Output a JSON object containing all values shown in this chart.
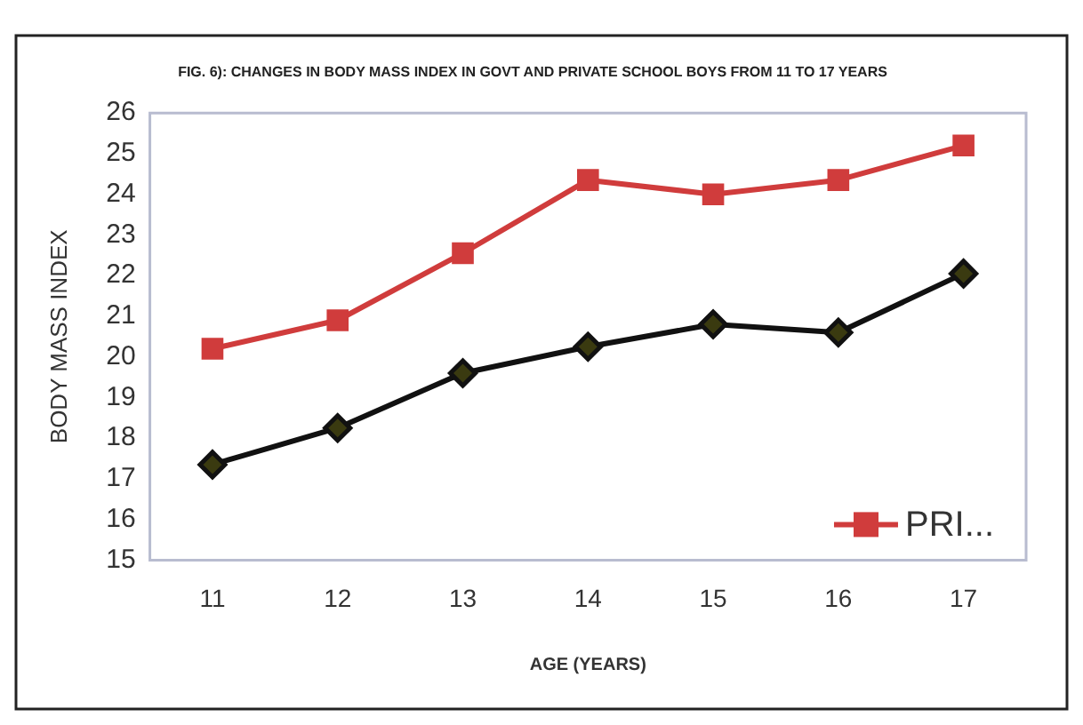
{
  "chart_data": {
    "type": "line",
    "title": "FIG. 6): CHANGES IN BODY MASS INDEX IN GOVT AND PRIVATE SCHOOL BOYS FROM 11 TO 17 YEARS",
    "xlabel": "AGE (YEARS)",
    "ylabel": "BODY MASS INDEX",
    "categories": [
      "11",
      "12",
      "13",
      "14",
      "15",
      "16",
      "17"
    ],
    "series": [
      {
        "name": "PRI...",
        "color": "#d03c3c",
        "marker": "square",
        "values": [
          20.2,
          20.9,
          22.55,
          24.35,
          24.0,
          24.35,
          25.2
        ]
      },
      {
        "color": "#111111",
        "marker": "diamond",
        "values": [
          17.35,
          18.25,
          19.6,
          20.25,
          20.8,
          20.6,
          22.05
        ]
      }
    ],
    "ylim": [
      15,
      26
    ],
    "yticks": [
      15,
      16,
      17,
      18,
      19,
      20,
      21,
      22,
      23,
      24,
      25,
      26
    ],
    "grid": false,
    "legend": "bottom right"
  }
}
